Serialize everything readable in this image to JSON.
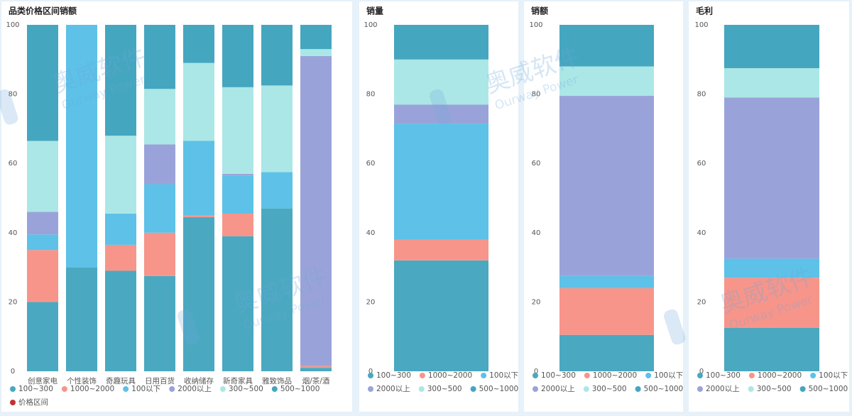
{
  "watermark": {
    "name": "奥威软件",
    "sub": "Ourway Power"
  },
  "chart_data": [
    {
      "type": "bar",
      "stacked": true,
      "title": "品类价格区间销额",
      "categories": [
        "创意家电",
        "个性装饰",
        "奇趣玩具",
        "日用百货",
        "收纳储存",
        "新奇家具",
        "雅致饰品",
        "烟/茶/酒"
      ],
      "series": [
        {
          "name": "100~300",
          "color": "#4aa8c0",
          "values": [
            20,
            30,
            29,
            27.5,
            44.5,
            39,
            47,
            1
          ]
        },
        {
          "name": "1000~2000",
          "color": "#f7958a",
          "values": [
            15,
            0,
            7.5,
            12.5,
            0.5,
            6.5,
            0,
            0.5
          ]
        },
        {
          "name": "100以下",
          "color": "#5dc1e8",
          "values": [
            4.5,
            70,
            9,
            14,
            21.5,
            11,
            10.5,
            0
          ]
        },
        {
          "name": "2000以上",
          "color": "#9aa3d9",
          "values": [
            6.5,
            0,
            0,
            11.5,
            0,
            0.5,
            0,
            89.5
          ]
        },
        {
          "name": "300~500",
          "color": "#abe7e6",
          "values": [
            20.5,
            0,
            22.5,
            16,
            22.5,
            25,
            25,
            2
          ]
        },
        {
          "name": "500~1000",
          "color": "#45a6c0",
          "values": [
            33.5,
            0,
            32,
            18.5,
            11,
            18,
            17.5,
            7
          ]
        },
        {
          "name": "价格区间",
          "color": "#c23531",
          "values": [
            null,
            null,
            null,
            null,
            null,
            null,
            null,
            null
          ]
        }
      ],
      "ylim": [
        0,
        100
      ],
      "yticks": [
        0,
        20,
        40,
        60,
        80,
        100
      ]
    },
    {
      "type": "bar",
      "stacked": true,
      "title": "销量",
      "categories": [
        null
      ],
      "series": [
        {
          "name": "100~300",
          "color": "#4aa8c0",
          "values": [
            32
          ]
        },
        {
          "name": "1000~2000",
          "color": "#f7958a",
          "values": [
            6
          ]
        },
        {
          "name": "100以下",
          "color": "#5dc1e8",
          "values": [
            33.5
          ]
        },
        {
          "name": "2000以上",
          "color": "#9aa3d9",
          "values": [
            5.5
          ]
        },
        {
          "name": "300~500",
          "color": "#abe7e6",
          "values": [
            13
          ]
        },
        {
          "name": "500~1000",
          "color": "#45a6c0",
          "values": [
            10
          ]
        }
      ],
      "ylim": [
        0,
        100
      ],
      "yticks": [
        0,
        20,
        40,
        60,
        80,
        100
      ]
    },
    {
      "type": "bar",
      "stacked": true,
      "title": "销额",
      "categories": [
        null
      ],
      "series": [
        {
          "name": "100~300",
          "color": "#4aa8c0",
          "values": [
            10.5
          ]
        },
        {
          "name": "1000~2000",
          "color": "#f7958a",
          "values": [
            13.5
          ]
        },
        {
          "name": "100以下",
          "color": "#5dc1e8",
          "values": [
            3.5
          ]
        },
        {
          "name": "2000以上",
          "color": "#9aa3d9",
          "values": [
            52
          ]
        },
        {
          "name": "300~500",
          "color": "#abe7e6",
          "values": [
            8.5
          ]
        },
        {
          "name": "500~1000",
          "color": "#45a6c0",
          "values": [
            12
          ]
        }
      ],
      "ylim": [
        0,
        100
      ],
      "yticks": [
        0,
        20,
        40,
        60,
        80,
        100
      ]
    },
    {
      "type": "bar",
      "stacked": true,
      "title": "毛利",
      "categories": [
        null
      ],
      "series": [
        {
          "name": "100~300",
          "color": "#4aa8c0",
          "values": [
            12.5
          ]
        },
        {
          "name": "1000~2000",
          "color": "#f7958a",
          "values": [
            14.5
          ]
        },
        {
          "name": "100以下",
          "color": "#5dc1e8",
          "values": [
            5.5
          ]
        },
        {
          "name": "2000以上",
          "color": "#9aa3d9",
          "values": [
            46.5
          ]
        },
        {
          "name": "300~500",
          "color": "#abe7e6",
          "values": [
            8.5
          ]
        },
        {
          "name": "500~1000",
          "color": "#45a6c0",
          "values": [
            12.5
          ]
        }
      ],
      "ylim": [
        0,
        100
      ],
      "yticks": [
        0,
        20,
        40,
        60,
        80,
        100
      ]
    }
  ]
}
